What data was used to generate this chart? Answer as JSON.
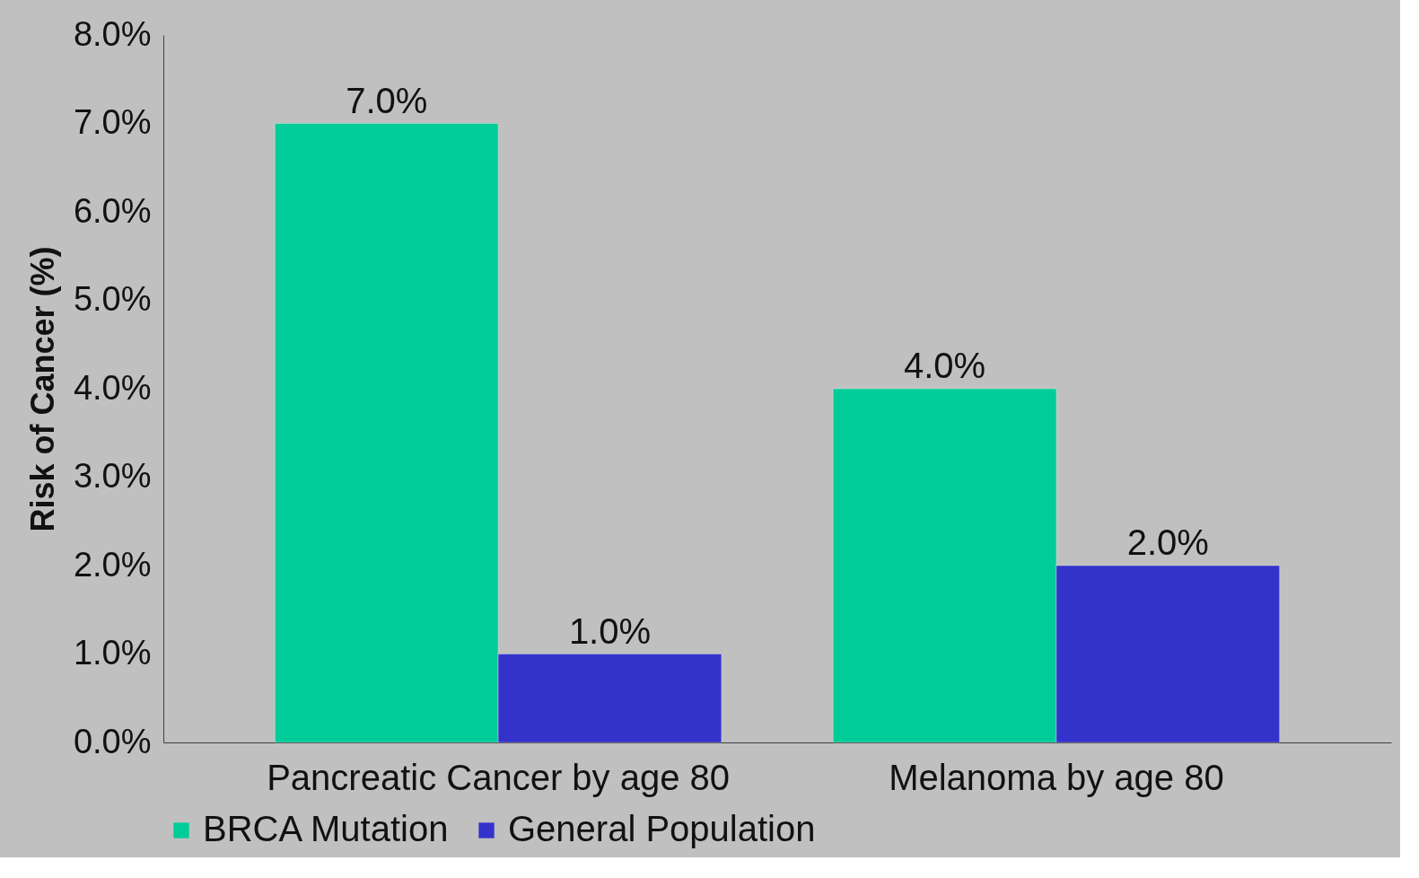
{
  "chart_data": {
    "type": "bar",
    "ylabel": "Risk of Cancer (%)",
    "categories": [
      "Pancreatic Cancer by age 80",
      "Melanoma by age 80"
    ],
    "series": [
      {
        "name": "BRCA Mutation",
        "color": "#00cc99",
        "values": [
          7,
          4
        ],
        "value_labels": [
          "7.0%",
          "4.0%"
        ]
      },
      {
        "name": "General Population",
        "color": "#3333cc",
        "values": [
          1,
          2
        ],
        "value_labels": [
          "1.0%",
          "2.0%"
        ]
      }
    ],
    "ylim": [
      0,
      8
    ],
    "yticks": [
      {
        "value": 0,
        "label": "0.0%"
      },
      {
        "value": 1,
        "label": "1.0%"
      },
      {
        "value": 2,
        "label": "2.0%"
      },
      {
        "value": 3,
        "label": "3.0%"
      },
      {
        "value": 4,
        "label": "4.0%"
      },
      {
        "value": 5,
        "label": "5.0%"
      },
      {
        "value": 6,
        "label": "6.0%"
      },
      {
        "value": 7,
        "label": "7.0%"
      },
      {
        "value": 8,
        "label": "8.0%"
      }
    ],
    "grid": false,
    "legend": "bottom"
  }
}
